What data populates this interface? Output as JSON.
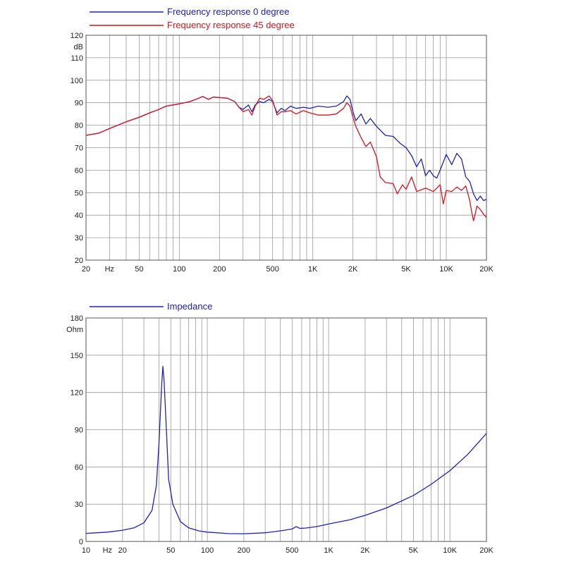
{
  "colors": {
    "blue": "#1f22b8",
    "red": "#d8141e",
    "grid": "#9a9a9a",
    "axis": "#555555"
  },
  "chart_data": [
    {
      "type": "line",
      "xscale": "log",
      "xlim": [
        20,
        20000
      ],
      "ylim": [
        20,
        120
      ],
      "ylabel": "dB",
      "yticks": [
        20,
        30,
        40,
        50,
        60,
        70,
        80,
        90,
        100,
        110,
        120
      ],
      "xtick_labels": [
        {
          "x": 20,
          "label": "20"
        },
        {
          "x": 30,
          "label": "Hz"
        },
        {
          "x": 50,
          "label": "50"
        },
        {
          "x": 100,
          "label": "100"
        },
        {
          "x": 200,
          "label": "200"
        },
        {
          "x": 500,
          "label": "500"
        },
        {
          "x": 1000,
          "label": "1K"
        },
        {
          "x": 2000,
          "label": "2K"
        },
        {
          "x": 5000,
          "label": "5K"
        },
        {
          "x": 10000,
          "label": "10K"
        },
        {
          "x": 20000,
          "label": "20K"
        }
      ],
      "grid": true,
      "legend_position": "top-left",
      "series": [
        {
          "name": "Frequency response 0 degree",
          "color": "#1f22b8",
          "points": [
            [
              20,
              75.5
            ],
            [
              25,
              76.5
            ],
            [
              30,
              78.5
            ],
            [
              40,
              81.5
            ],
            [
              50,
              83.5
            ],
            [
              60,
              85.5
            ],
            [
              70,
              87
            ],
            [
              80,
              88.5
            ],
            [
              100,
              89.5
            ],
            [
              120,
              90.5
            ],
            [
              140,
              92
            ],
            [
              150,
              92.8
            ],
            [
              165,
              91.5
            ],
            [
              180,
              92.5
            ],
            [
              200,
              92.3
            ],
            [
              230,
              92
            ],
            [
              260,
              90.5
            ],
            [
              280,
              88
            ],
            [
              300,
              87
            ],
            [
              330,
              89
            ],
            [
              350,
              86
            ],
            [
              370,
              89
            ],
            [
              400,
              90.5
            ],
            [
              430,
              90
            ],
            [
              470,
              91.5
            ],
            [
              500,
              90.5
            ],
            [
              540,
              85.5
            ],
            [
              580,
              87.5
            ],
            [
              620,
              86.5
            ],
            [
              680,
              88.5
            ],
            [
              750,
              87.5
            ],
            [
              850,
              88
            ],
            [
              950,
              87.5
            ],
            [
              1100,
              88.5
            ],
            [
              1300,
              88
            ],
            [
              1500,
              88.5
            ],
            [
              1700,
              90.5
            ],
            [
              1800,
              93
            ],
            [
              1900,
              91.5
            ],
            [
              2000,
              86
            ],
            [
              2100,
              82
            ],
            [
              2300,
              85
            ],
            [
              2500,
              80.5
            ],
            [
              2700,
              83
            ],
            [
              3000,
              79.5
            ],
            [
              3500,
              75.5
            ],
            [
              4000,
              75
            ],
            [
              4500,
              72
            ],
            [
              5000,
              70
            ],
            [
              5500,
              66.5
            ],
            [
              6000,
              61.5
            ],
            [
              6500,
              65
            ],
            [
              7000,
              57.5
            ],
            [
              7500,
              60
            ],
            [
              8000,
              57.5
            ],
            [
              8500,
              56.5
            ],
            [
              9000,
              60
            ],
            [
              10000,
              67
            ],
            [
              11000,
              62.5
            ],
            [
              12000,
              67.5
            ],
            [
              13000,
              65
            ],
            [
              14000,
              57
            ],
            [
              15000,
              55
            ],
            [
              16000,
              49.5
            ],
            [
              17000,
              46.5
            ],
            [
              18000,
              48.5
            ],
            [
              19000,
              46.5
            ],
            [
              20000,
              47
            ]
          ]
        },
        {
          "name": "Frequency response 45 degree",
          "color": "#d8141e",
          "points": [
            [
              20,
              75.5
            ],
            [
              25,
              76.5
            ],
            [
              30,
              78.5
            ],
            [
              40,
              81.5
            ],
            [
              50,
              83.5
            ],
            [
              60,
              85.5
            ],
            [
              70,
              87
            ],
            [
              80,
              88.5
            ],
            [
              100,
              89.5
            ],
            [
              120,
              90.5
            ],
            [
              140,
              92
            ],
            [
              150,
              92.8
            ],
            [
              165,
              91.5
            ],
            [
              180,
              92.5
            ],
            [
              200,
              92.3
            ],
            [
              230,
              92
            ],
            [
              260,
              90.5
            ],
            [
              280,
              88
            ],
            [
              300,
              86
            ],
            [
              330,
              87
            ],
            [
              350,
              84.5
            ],
            [
              370,
              88.5
            ],
            [
              400,
              92
            ],
            [
              430,
              91.5
            ],
            [
              470,
              93
            ],
            [
              500,
              91
            ],
            [
              540,
              84.5
            ],
            [
              580,
              86
            ],
            [
              620,
              86
            ],
            [
              680,
              86.5
            ],
            [
              750,
              85
            ],
            [
              850,
              86.5
            ],
            [
              950,
              85.5
            ],
            [
              1100,
              84.5
            ],
            [
              1300,
              84.5
            ],
            [
              1500,
              85
            ],
            [
              1700,
              87.5
            ],
            [
              1800,
              90
            ],
            [
              1900,
              88.5
            ],
            [
              2000,
              83.5
            ],
            [
              2100,
              79.5
            ],
            [
              2300,
              74.5
            ],
            [
              2500,
              70.5
            ],
            [
              2700,
              72.5
            ],
            [
              3000,
              66
            ],
            [
              3200,
              57
            ],
            [
              3500,
              54.5
            ],
            [
              4000,
              54
            ],
            [
              4300,
              49.5
            ],
            [
              4700,
              53.5
            ],
            [
              5000,
              51.5
            ],
            [
              5500,
              57
            ],
            [
              6000,
              50.5
            ],
            [
              7000,
              52
            ],
            [
              8000,
              50.5
            ],
            [
              9000,
              53.5
            ],
            [
              9500,
              45
            ],
            [
              10000,
              51
            ],
            [
              11000,
              50.5
            ],
            [
              12000,
              52.5
            ],
            [
              13000,
              51
            ],
            [
              14000,
              53
            ],
            [
              15000,
              46.5
            ],
            [
              15500,
              41.5
            ],
            [
              16000,
              37.5
            ],
            [
              17000,
              44
            ],
            [
              18000,
              42.5
            ],
            [
              19000,
              40.5
            ],
            [
              20000,
              39
            ]
          ]
        }
      ]
    },
    {
      "type": "line",
      "xscale": "log",
      "xlim": [
        10,
        20000
      ],
      "ylim": [
        0,
        180
      ],
      "ylabel": "Ohm",
      "yticks": [
        0,
        30,
        60,
        90,
        120,
        150,
        180
      ],
      "xtick_labels": [
        {
          "x": 10,
          "label": "10"
        },
        {
          "x": 15,
          "label": "Hz"
        },
        {
          "x": 20,
          "label": "20"
        },
        {
          "x": 50,
          "label": "50"
        },
        {
          "x": 100,
          "label": "100"
        },
        {
          "x": 200,
          "label": "200"
        },
        {
          "x": 500,
          "label": "500"
        },
        {
          "x": 1000,
          "label": "1K"
        },
        {
          "x": 2000,
          "label": "2K"
        },
        {
          "x": 5000,
          "label": "5K"
        },
        {
          "x": 10000,
          "label": "10K"
        },
        {
          "x": 20000,
          "label": "20K"
        }
      ],
      "grid": true,
      "legend_position": "top-left",
      "series": [
        {
          "name": "Impedance",
          "color": "#1f22b8",
          "points": [
            [
              10,
              6.5
            ],
            [
              15,
              7.5
            ],
            [
              20,
              9
            ],
            [
              25,
              11
            ],
            [
              30,
              15
            ],
            [
              35,
              25
            ],
            [
              38,
              45
            ],
            [
              40,
              80
            ],
            [
              42,
              125
            ],
            [
              43,
              141
            ],
            [
              44,
              130
            ],
            [
              46,
              90
            ],
            [
              48,
              50
            ],
            [
              52,
              30
            ],
            [
              60,
              16
            ],
            [
              70,
              11
            ],
            [
              85,
              8.5
            ],
            [
              100,
              7.5
            ],
            [
              150,
              6.3
            ],
            [
              200,
              6.2
            ],
            [
              300,
              7
            ],
            [
              400,
              8.5
            ],
            [
              500,
              10
            ],
            [
              540,
              12
            ],
            [
              580,
              10.5
            ],
            [
              650,
              10.8
            ],
            [
              800,
              12
            ],
            [
              1000,
              14
            ],
            [
              1500,
              17.5
            ],
            [
              2000,
              21
            ],
            [
              3000,
              27
            ],
            [
              5000,
              37
            ],
            [
              7000,
              46
            ],
            [
              10000,
              57
            ],
            [
              14000,
              70
            ],
            [
              20000,
              87
            ]
          ]
        }
      ]
    }
  ]
}
